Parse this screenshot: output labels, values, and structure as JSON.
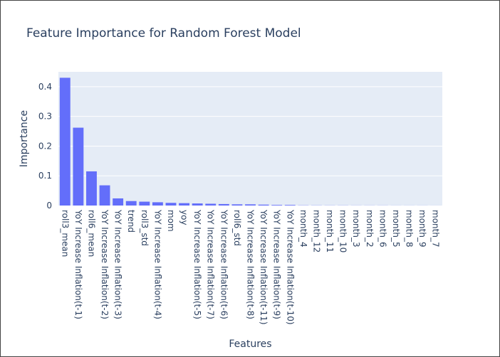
{
  "chart_data": {
    "type": "bar",
    "title": "Feature Importance for Random Forest Model",
    "xlabel": "Features",
    "ylabel": "Importance",
    "ylim": [
      0,
      0.45
    ],
    "yticks": [
      0,
      0.1,
      0.2,
      0.3,
      0.4
    ],
    "ytick_labels": [
      "0",
      "0.1",
      "0.2",
      "0.3",
      "0.4"
    ],
    "grid": true,
    "colors": {
      "bar": "#636efa",
      "plot_bg": "#e5ecf6",
      "grid": "#ffffff"
    },
    "categories": [
      "roll3_mean",
      "YoY Increase Inflation(t-1)",
      "roll6_mean",
      "YoY Increase Inflation(t-2)",
      "YoY Increase Inflation(t-3)",
      "trend",
      "roll3_std",
      "YoY Increase Inflation(t-4)",
      "mom",
      "yoy",
      "YoY Increase Inflation(t-5)",
      "YoY Increase Inflation(t-7)",
      "YoY Increase Inflation(t-6)",
      "roll6_std",
      "YoY Increase Inflation(t-8)",
      "YoY Increase Inflation(t-11)",
      "YoY Increase Inflation(t-9)",
      "YoY Increase Inflation(t-10)",
      "month_4",
      "month_12",
      "month_11",
      "month_10",
      "month_3",
      "month_2",
      "month_6",
      "month_5",
      "month_8",
      "month_9",
      "month_7"
    ],
    "values": [
      0.43,
      0.262,
      0.115,
      0.068,
      0.024,
      0.015,
      0.013,
      0.011,
      0.009,
      0.008,
      0.007,
      0.006,
      0.005,
      0.004,
      0.004,
      0.003,
      0.002,
      0.002,
      0.0006,
      0.0005,
      0.0004,
      0.0004,
      0.0003,
      0.0003,
      0.0003,
      0.0002,
      0.0002,
      0.0002,
      0.0001
    ]
  }
}
